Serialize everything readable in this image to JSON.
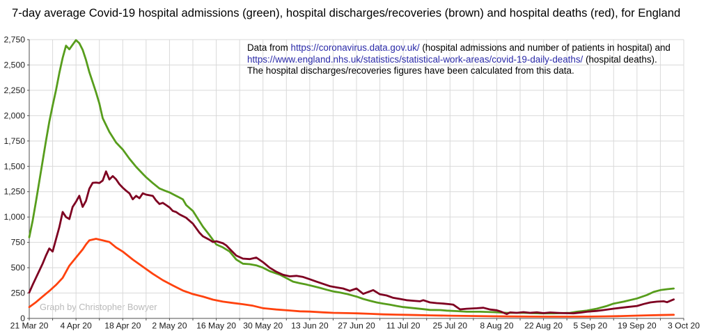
{
  "title": "7-day average Covid-19 hospital admissions (green), hospital discharges/recoveries (brown) and hospital deaths (red), for England",
  "annotation": {
    "line1_prefix": "Data from ",
    "link1": "https://coronavirus.data.gov.uk/",
    "line1_suffix": " (hospital admissions and number of patients in hospital) and",
    "link2": "https://www.england.nhs.uk/statistics/statistical-work-areas/covid-19-daily-deaths/",
    "line2_suffix": " (hospital deaths).",
    "line3": "The hospital discharges/recoveries figures have been calculated from this data."
  },
  "watermark": "Graph by Christopher Bowyer",
  "colors": {
    "admissions": "#579d1c",
    "discharges": "#7e0021",
    "deaths": "#ff420e",
    "grid": "#d9d9d9",
    "axis": "#4d4d4d",
    "tick_text": "#1a1a1a",
    "link": "#2a2aa8",
    "watermark": "#b9b9b9"
  },
  "chart_data": {
    "type": "line",
    "title": "7-day average Covid-19 hospital admissions (green), hospital discharges/recoveries (brown) and hospital deaths (red), for England",
    "x_axis": {
      "kind": "date",
      "range_days": [
        0,
        196
      ],
      "tick_interval_days": 14,
      "grid_interval_days": 7,
      "tick_labels": [
        "21 Mar 20",
        "4 Apr 20",
        "18 Apr 20",
        "2 May 20",
        "16 May 20",
        "30 May 20",
        "13 Jun 20",
        "27 Jun 20",
        "11 Jul 20",
        "25 Jul 20",
        "8 Aug 20",
        "22 Aug 20",
        "5 Sep 20",
        "19 Sep 20",
        "3 Oct 20"
      ]
    },
    "y_axis": {
      "range": [
        0,
        2750
      ],
      "grid_interval": 250,
      "tick_values": [
        0,
        250,
        500,
        750,
        1000,
        1250,
        1500,
        1750,
        2000,
        2250,
        2500,
        2750
      ],
      "tick_labels": [
        "0",
        "250",
        "500",
        "750",
        "1,000",
        "1,250",
        "1,500",
        "1,750",
        "2,000",
        "2,250",
        "2,500",
        "2,750"
      ]
    },
    "legend": "none (series identified by colors named in title)",
    "series": [
      {
        "name": "hospital admissions",
        "color_key": "admissions",
        "points": [
          [
            0,
            800
          ],
          [
            1,
            960
          ],
          [
            2,
            1150
          ],
          [
            3,
            1350
          ],
          [
            4,
            1550
          ],
          [
            5,
            1750
          ],
          [
            6,
            1940
          ],
          [
            7,
            2100
          ],
          [
            8,
            2250
          ],
          [
            9,
            2420
          ],
          [
            10,
            2570
          ],
          [
            11,
            2690
          ],
          [
            12,
            2655
          ],
          [
            13,
            2700
          ],
          [
            14,
            2745
          ],
          [
            15,
            2715
          ],
          [
            16,
            2650
          ],
          [
            17,
            2550
          ],
          [
            18,
            2430
          ],
          [
            19,
            2330
          ],
          [
            20,
            2230
          ],
          [
            21,
            2120
          ],
          [
            22,
            1975
          ],
          [
            24,
            1840
          ],
          [
            26,
            1735
          ],
          [
            28,
            1666
          ],
          [
            30,
            1575
          ],
          [
            32,
            1495
          ],
          [
            34,
            1426
          ],
          [
            35,
            1392
          ],
          [
            37,
            1335
          ],
          [
            39,
            1282
          ],
          [
            41,
            1255
          ],
          [
            42,
            1243
          ],
          [
            44,
            1209
          ],
          [
            46,
            1175
          ],
          [
            47,
            1118
          ],
          [
            49,
            1060
          ],
          [
            52,
            905
          ],
          [
            54,
            820
          ],
          [
            56,
            730
          ],
          [
            58,
            700
          ],
          [
            60,
            660
          ],
          [
            61,
            620
          ],
          [
            62,
            581
          ],
          [
            64,
            540
          ],
          [
            66,
            535
          ],
          [
            68,
            523
          ],
          [
            70,
            500
          ],
          [
            72,
            466
          ],
          [
            75,
            432
          ],
          [
            77,
            398
          ],
          [
            79,
            363
          ],
          [
            81,
            347
          ],
          [
            83,
            334
          ],
          [
            85,
            318
          ],
          [
            87,
            302
          ],
          [
            89,
            283
          ],
          [
            91,
            267
          ],
          [
            93,
            256
          ],
          [
            95,
            242
          ],
          [
            98,
            215
          ],
          [
            100,
            192
          ],
          [
            102,
            174
          ],
          [
            104,
            158
          ],
          [
            106,
            146
          ],
          [
            108,
            135
          ],
          [
            110,
            123
          ],
          [
            112,
            112
          ],
          [
            114,
            105
          ],
          [
            116,
            98
          ],
          [
            118,
            91
          ],
          [
            120,
            84
          ],
          [
            123,
            82
          ],
          [
            125,
            77
          ],
          [
            128,
            72
          ],
          [
            131,
            66
          ],
          [
            135,
            66
          ],
          [
            139,
            62
          ],
          [
            143,
            55
          ],
          [
            148,
            55
          ],
          [
            153,
            50
          ],
          [
            157,
            50
          ],
          [
            162,
            55
          ],
          [
            164,
            66
          ],
          [
            167,
            77
          ],
          [
            170,
            96
          ],
          [
            173,
            123
          ],
          [
            175,
            146
          ],
          [
            178,
            165
          ],
          [
            182,
            197
          ],
          [
            185,
            231
          ],
          [
            187,
            261
          ],
          [
            189,
            279
          ],
          [
            191,
            288
          ],
          [
            193,
            295
          ]
        ]
      },
      {
        "name": "hospital discharges/recoveries",
        "color_key": "discharges",
        "points": [
          [
            0,
            255
          ],
          [
            1,
            330
          ],
          [
            2,
            400
          ],
          [
            3,
            470
          ],
          [
            4,
            540
          ],
          [
            5,
            620
          ],
          [
            6,
            690
          ],
          [
            7,
            660
          ],
          [
            8,
            780
          ],
          [
            9,
            900
          ],
          [
            10,
            1050
          ],
          [
            11,
            1000
          ],
          [
            12,
            980
          ],
          [
            13,
            1100
          ],
          [
            14,
            1150
          ],
          [
            15,
            1210
          ],
          [
            16,
            1100
          ],
          [
            17,
            1160
          ],
          [
            18,
            1280
          ],
          [
            19,
            1337
          ],
          [
            20,
            1340
          ],
          [
            21,
            1335
          ],
          [
            22,
            1360
          ],
          [
            23,
            1450
          ],
          [
            24,
            1370
          ],
          [
            25,
            1404
          ],
          [
            26,
            1372
          ],
          [
            27,
            1324
          ],
          [
            28,
            1289
          ],
          [
            29,
            1260
          ],
          [
            30,
            1234
          ],
          [
            31,
            1175
          ],
          [
            32,
            1209
          ],
          [
            33,
            1186
          ],
          [
            34,
            1234
          ],
          [
            35,
            1221
          ],
          [
            37,
            1209
          ],
          [
            38,
            1163
          ],
          [
            39,
            1129
          ],
          [
            40,
            1140
          ],
          [
            41,
            1118
          ],
          [
            42,
            1095
          ],
          [
            43,
            1060
          ],
          [
            44,
            1049
          ],
          [
            45,
            1026
          ],
          [
            47,
            992
          ],
          [
            49,
            935
          ],
          [
            51,
            844
          ],
          [
            52,
            810
          ],
          [
            54,
            775
          ],
          [
            55,
            754
          ],
          [
            56,
            761
          ],
          [
            58,
            741
          ],
          [
            59,
            720
          ],
          [
            60,
            686
          ],
          [
            62,
            620
          ],
          [
            64,
            590
          ],
          [
            66,
            585
          ],
          [
            68,
            600
          ],
          [
            70,
            555
          ],
          [
            72,
            500
          ],
          [
            74,
            460
          ],
          [
            76,
            430
          ],
          [
            78,
            415
          ],
          [
            80,
            420
          ],
          [
            82,
            409
          ],
          [
            84,
            386
          ],
          [
            86,
            363
          ],
          [
            88,
            341
          ],
          [
            90,
            318
          ],
          [
            92,
            306
          ],
          [
            94,
            295
          ],
          [
            96,
            272
          ],
          [
            98,
            295
          ],
          [
            100,
            242
          ],
          [
            103,
            279
          ],
          [
            105,
            238
          ],
          [
            107,
            226
          ],
          [
            109,
            203
          ],
          [
            111,
            192
          ],
          [
            113,
            180
          ],
          [
            115,
            174
          ],
          [
            117,
            169
          ],
          [
            118,
            180
          ],
          [
            120,
            158
          ],
          [
            122,
            151
          ],
          [
            124,
            146
          ],
          [
            126,
            140
          ],
          [
            127,
            135
          ],
          [
            129,
            89
          ],
          [
            131,
            95
          ],
          [
            134,
            100
          ],
          [
            136,
            105
          ],
          [
            138,
            88
          ],
          [
            140,
            80
          ],
          [
            141,
            70
          ],
          [
            143,
            43
          ],
          [
            144,
            59
          ],
          [
            146,
            55
          ],
          [
            148,
            62
          ],
          [
            150,
            55
          ],
          [
            152,
            60
          ],
          [
            154,
            52
          ],
          [
            156,
            58
          ],
          [
            158,
            55
          ],
          [
            160,
            52
          ],
          [
            163,
            50
          ],
          [
            165,
            57
          ],
          [
            167,
            66
          ],
          [
            170,
            74
          ],
          [
            172,
            82
          ],
          [
            175,
            96
          ],
          [
            179,
            112
          ],
          [
            182,
            123
          ],
          [
            184,
            142
          ],
          [
            186,
            158
          ],
          [
            188,
            165
          ],
          [
            190,
            169
          ],
          [
            191,
            160
          ],
          [
            193,
            187
          ]
        ]
      },
      {
        "name": "hospital deaths",
        "color_key": "deaths",
        "points": [
          [
            0,
            112
          ],
          [
            2,
            160
          ],
          [
            4,
            215
          ],
          [
            6,
            270
          ],
          [
            8,
            330
          ],
          [
            10,
            400
          ],
          [
            12,
            520
          ],
          [
            14,
            600
          ],
          [
            16,
            680
          ],
          [
            17,
            730
          ],
          [
            18,
            770
          ],
          [
            20,
            785
          ],
          [
            22,
            770
          ],
          [
            24,
            754
          ],
          [
            26,
            700
          ],
          [
            28,
            659
          ],
          [
            31,
            580
          ],
          [
            34,
            510
          ],
          [
            37,
            440
          ],
          [
            40,
            377
          ],
          [
            43,
            325
          ],
          [
            46,
            275
          ],
          [
            49,
            240
          ],
          [
            52,
            215
          ],
          [
            55,
            185
          ],
          [
            58,
            165
          ],
          [
            61,
            152
          ],
          [
            64,
            140
          ],
          [
            67,
            125
          ],
          [
            70,
            101
          ],
          [
            74,
            88
          ],
          [
            78,
            78
          ],
          [
            81,
            70
          ],
          [
            84,
            67
          ],
          [
            88,
            60
          ],
          [
            91,
            55
          ],
          [
            95,
            52
          ],
          [
            98,
            50
          ],
          [
            102,
            45
          ],
          [
            106,
            40
          ],
          [
            110,
            37
          ],
          [
            112,
            36
          ],
          [
            116,
            33
          ],
          [
            120,
            30
          ],
          [
            126,
            27
          ],
          [
            132,
            24
          ],
          [
            138,
            21
          ],
          [
            144,
            19
          ],
          [
            150,
            18
          ],
          [
            156,
            17
          ],
          [
            162,
            17
          ],
          [
            168,
            18
          ],
          [
            172,
            20
          ],
          [
            176,
            22
          ],
          [
            181,
            27
          ],
          [
            185,
            30
          ],
          [
            189,
            33
          ],
          [
            193,
            36
          ]
        ]
      }
    ]
  }
}
